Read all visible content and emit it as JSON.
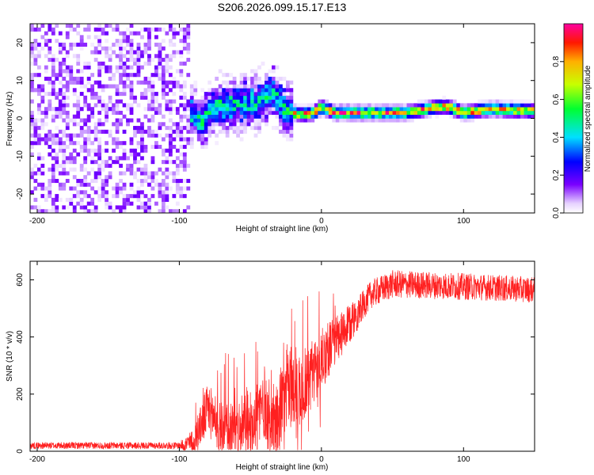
{
  "title": "S206.2026.099.15.17.E13",
  "chart_data": [
    {
      "type": "heatmap",
      "xlabel": "Height of straight line (km)",
      "ylabel": "Frequency (Hz)",
      "xlim": [
        -205,
        150
      ],
      "ylim": [
        -25,
        25
      ],
      "xticks": [
        -200,
        -100,
        0,
        100
      ],
      "yticks": [
        -20,
        -10,
        0,
        10,
        20
      ],
      "colorbar": {
        "label": "Normalized spectral amplitude",
        "range": [
          0,
          1
        ],
        "ticks": [
          "0.0",
          "0.2",
          "0.4",
          "0.6",
          "0.8"
        ],
        "tick_values": [
          0.0,
          0.2,
          0.4,
          0.6,
          0.8
        ]
      },
      "ridge": {
        "description_points": [
          {
            "x": -95,
            "y": 2
          },
          {
            "x": -85,
            "y": -1
          },
          {
            "x": -75,
            "y": 3
          },
          {
            "x": -60,
            "y": 4
          },
          {
            "x": -45,
            "y": 4
          },
          {
            "x": -35,
            "y": 7
          },
          {
            "x": -25,
            "y": 2
          },
          {
            "x": -15,
            "y": 1
          },
          {
            "x": -5,
            "y": 1.5
          },
          {
            "x": 0,
            "y": 3
          },
          {
            "x": 10,
            "y": 1.5
          },
          {
            "x": 30,
            "y": 1.5
          },
          {
            "x": 60,
            "y": 1.5
          },
          {
            "x": 80,
            "y": 3
          },
          {
            "x": 90,
            "y": 3
          },
          {
            "x": 100,
            "y": 1.5
          },
          {
            "x": 120,
            "y": 2.5
          },
          {
            "x": 150,
            "y": 2
          }
        ],
        "peak_amplitude": 0.95
      },
      "noise_region": {
        "xmin": -205,
        "xmax": -92,
        "amplitude_range": [
          0.0,
          0.15
        ]
      }
    },
    {
      "type": "line",
      "xlabel": "Height of straight line (km)",
      "ylabel": "SNR (10 * v/v)",
      "xlim": [
        -205,
        150
      ],
      "ylim": [
        0,
        665
      ],
      "xticks": [
        -200,
        -100,
        0,
        100
      ],
      "yticks": [
        0,
        200,
        400,
        600
      ],
      "color": "#ff2020",
      "envelope": [
        {
          "x": -205,
          "y": 20
        },
        {
          "x": -100,
          "y": 20
        },
        {
          "x": -90,
          "y": 30
        },
        {
          "x": -80,
          "y": 150
        },
        {
          "x": -72,
          "y": 90
        },
        {
          "x": -60,
          "y": 70
        },
        {
          "x": -50,
          "y": 100
        },
        {
          "x": -40,
          "y": 170
        },
        {
          "x": -32,
          "y": 80
        },
        {
          "x": -25,
          "y": 230
        },
        {
          "x": -15,
          "y": 220
        },
        {
          "x": -5,
          "y": 280
        },
        {
          "x": 5,
          "y": 360
        },
        {
          "x": 15,
          "y": 410
        },
        {
          "x": 25,
          "y": 480
        },
        {
          "x": 35,
          "y": 550
        },
        {
          "x": 50,
          "y": 585
        },
        {
          "x": 80,
          "y": 580
        },
        {
          "x": 110,
          "y": 575
        },
        {
          "x": 150,
          "y": 565
        }
      ],
      "noise_amplitude": [
        {
          "x": -205,
          "a": 12
        },
        {
          "x": -100,
          "a": 12
        },
        {
          "x": -80,
          "a": 90
        },
        {
          "x": -40,
          "a": 130
        },
        {
          "x": -20,
          "a": 150
        },
        {
          "x": 0,
          "a": 110
        },
        {
          "x": 30,
          "a": 50
        },
        {
          "x": 150,
          "a": 45
        }
      ]
    }
  ]
}
